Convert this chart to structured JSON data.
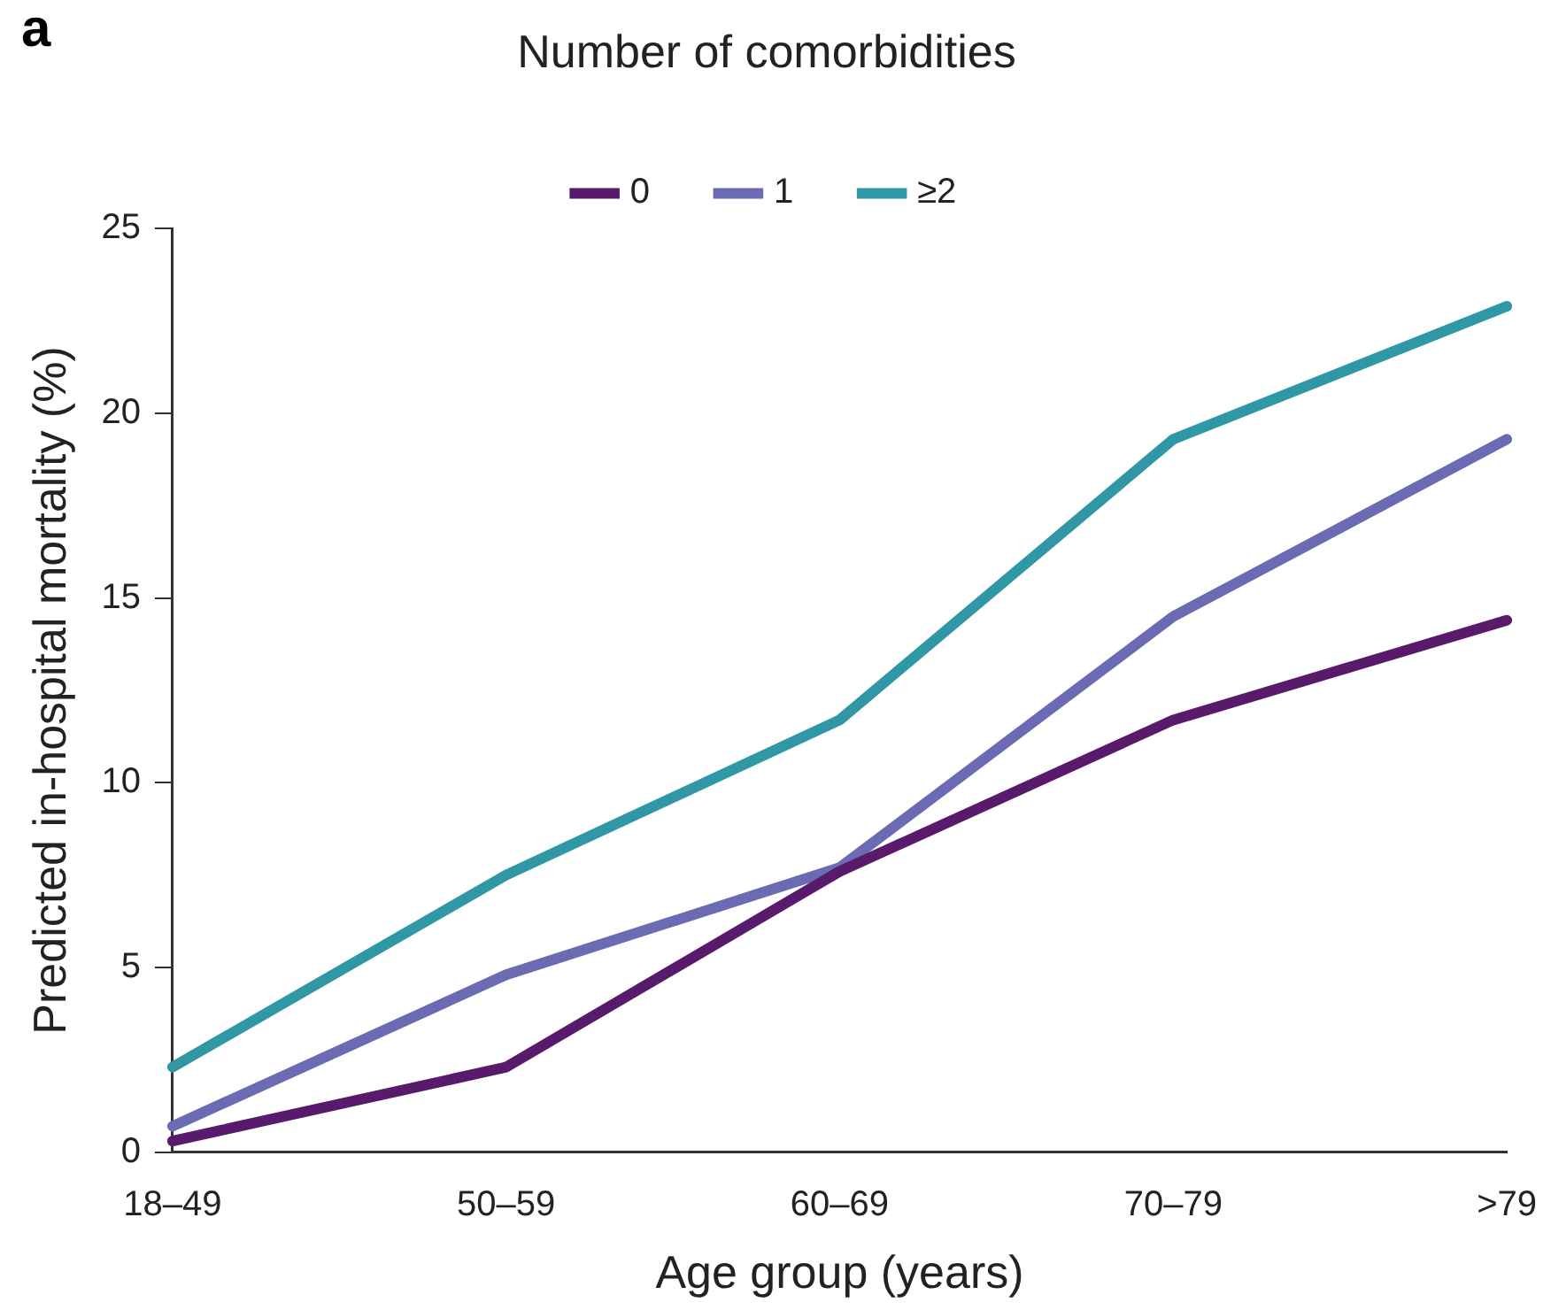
{
  "chart_data": {
    "type": "line",
    "xlabel": "Age group (years)",
    "ylabel": "Predicted in-hospital mortality (%)",
    "legend_title": "Number of comorbidities",
    "annotations": [
      "a"
    ],
    "categories": [
      "18–49",
      "50–59",
      "60–69",
      "70–79",
      ">79"
    ],
    "series": [
      {
        "name": "0",
        "color": "#5a1a6b",
        "values": [
          0.3,
          2.3,
          7.6,
          11.7,
          14.4
        ]
      },
      {
        "name": "1",
        "color": "#6b6bb3",
        "values": [
          0.7,
          4.8,
          7.7,
          14.5,
          19.3
        ]
      },
      {
        "name": "≥2",
        "color": "#2f97a5",
        "values": [
          2.3,
          7.5,
          11.7,
          19.3,
          22.9
        ]
      }
    ],
    "ylim": [
      0,
      25
    ],
    "yticks": [
      0,
      5,
      10,
      15,
      20,
      25
    ],
    "grid": false,
    "legend": "top",
    "marker": "none",
    "line_style": "solid"
  }
}
